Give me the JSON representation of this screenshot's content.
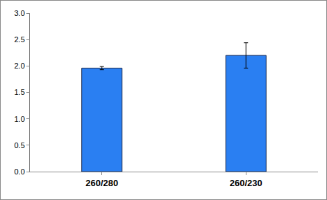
{
  "chart_data": {
    "type": "bar",
    "categories": [
      "260/280",
      "260/230"
    ],
    "values": [
      1.96,
      2.2
    ],
    "errors": [
      0.03,
      0.24
    ],
    "color": "#2a7ff2",
    "ylim": [
      0,
      3
    ],
    "yticks": [
      {
        "value": 0,
        "label": "0.0"
      },
      0.5,
      {
        "value": 1,
        "label": "1.0"
      },
      1.5,
      {
        "value": 2,
        "label": "2.0"
      },
      2.5,
      {
        "value": 3,
        "label": "3.0"
      }
    ],
    "grid": false
  }
}
